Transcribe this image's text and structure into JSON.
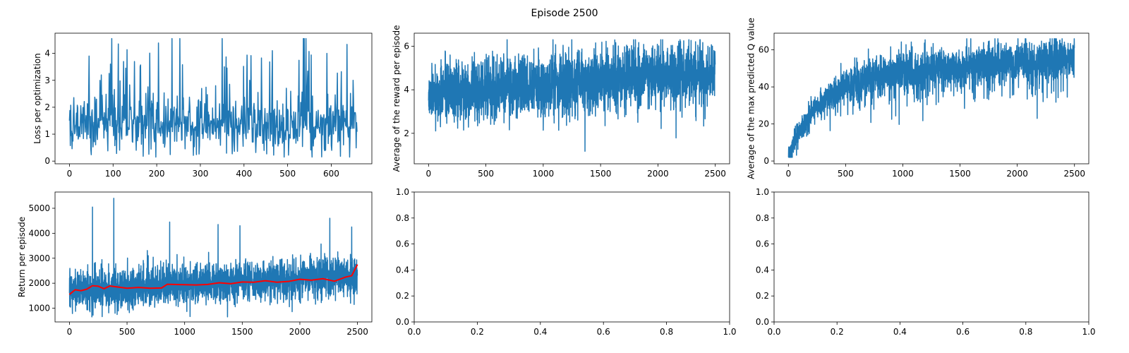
{
  "figure": {
    "suptitle": "Episode 2500"
  },
  "chart_data": [
    {
      "id": "loss",
      "type": "line",
      "ylabel": "Loss per optimization",
      "xlim": [
        -33,
        693
      ],
      "ylim": [
        -0.1,
        4.75
      ],
      "xticks": [
        0,
        100,
        200,
        300,
        400,
        500,
        600
      ],
      "xtick_labels": [
        "0",
        "100",
        "200",
        "300",
        "400",
        "500",
        "600"
      ],
      "yticks": [
        0,
        1,
        2,
        3,
        4
      ],
      "ytick_labels": [
        "0",
        "1",
        "2",
        "3",
        "4"
      ],
      "series": [
        {
          "color": "#1f77b4",
          "n": 660,
          "base_mean": 1.25,
          "noise": 0.55,
          "range": [
            0.15,
            4.55
          ],
          "spikes": [
            {
              "x": 45,
              "y": 3.9
            },
            {
              "x": 112,
              "y": 4.35
            },
            {
              "x": 253,
              "y": 4.55
            },
            {
              "x": 355,
              "y": 3.5
            },
            {
              "x": 465,
              "y": 4.1
            },
            {
              "x": 590,
              "y": 4.0
            },
            {
              "x": 650,
              "y": 3.0
            }
          ]
        }
      ]
    },
    {
      "id": "avg-reward",
      "type": "line",
      "ylabel": "Average of the reward per episode",
      "xlim": [
        -125,
        2625
      ],
      "ylim": [
        0.6,
        6.6
      ],
      "xticks": [
        0,
        500,
        1000,
        1500,
        2000,
        2500
      ],
      "xtick_labels": [
        "0",
        "500",
        "1000",
        "1500",
        "2000",
        "2500"
      ],
      "yticks": [
        2,
        4,
        6
      ],
      "ytick_labels": [
        "2",
        "4",
        "6"
      ],
      "series": [
        {
          "color": "#1f77b4",
          "n": 2500,
          "mean_start": 3.8,
          "mean_end": 4.8,
          "noise": 0.8,
          "range": [
            0.8,
            6.3
          ]
        }
      ]
    },
    {
      "id": "max-q",
      "type": "line",
      "ylabel": "Average of the max predicted Q value",
      "xlim": [
        -125,
        2625
      ],
      "ylim": [
        -1.5,
        69
      ],
      "xticks": [
        0,
        500,
        1000,
        1500,
        2000,
        2500
      ],
      "xtick_labels": [
        "0",
        "500",
        "1000",
        "1500",
        "2000",
        "2500"
      ],
      "yticks": [
        0,
        20,
        40,
        60
      ],
      "ytick_labels": [
        "0",
        "20",
        "40",
        "60"
      ],
      "series": [
        {
          "color": "#1f77b4",
          "n": 2500,
          "curve": "rising",
          "start": 3,
          "plateau_start": 45,
          "plateau_end": 55,
          "noise": 6,
          "range": [
            2,
            66
          ]
        }
      ]
    },
    {
      "id": "return",
      "type": "line",
      "ylabel": "Return per episode",
      "xlim": [
        -125,
        2625
      ],
      "ylim": [
        450,
        5650
      ],
      "xticks": [
        0,
        500,
        1000,
        1500,
        2000,
        2500
      ],
      "xtick_labels": [
        "0",
        "500",
        "1000",
        "1500",
        "2000",
        "2500"
      ],
      "yticks": [
        1000,
        2000,
        3000,
        4000,
        5000
      ],
      "ytick_labels": [
        "1000",
        "2000",
        "3000",
        "4000",
        "5000"
      ],
      "series": [
        {
          "color": "#1f77b4",
          "n": 2500,
          "mean_start": 1700,
          "mean_end": 2300,
          "noise": 450,
          "range": [
            650,
            5400
          ],
          "spikes": [
            {
              "x": 200,
              "y": 5050
            },
            {
              "x": 385,
              "y": 5400
            },
            {
              "x": 870,
              "y": 4450
            },
            {
              "x": 1290,
              "y": 4350
            },
            {
              "x": 1480,
              "y": 4300
            },
            {
              "x": 2260,
              "y": 4600
            },
            {
              "x": 2450,
              "y": 4250
            }
          ]
        },
        {
          "color": "#ff0000",
          "type": "moving-average",
          "points": [
            [
              0,
              1550
            ],
            [
              50,
              1740
            ],
            [
              100,
              1700
            ],
            [
              150,
              1760
            ],
            [
              200,
              1900
            ],
            [
              250,
              1880
            ],
            [
              300,
              1780
            ],
            [
              350,
              1890
            ],
            [
              400,
              1860
            ],
            [
              500,
              1800
            ],
            [
              600,
              1830
            ],
            [
              700,
              1800
            ],
            [
              800,
              1810
            ],
            [
              850,
              1960
            ],
            [
              900,
              1950
            ],
            [
              1000,
              1940
            ],
            [
              1100,
              1930
            ],
            [
              1200,
              1950
            ],
            [
              1300,
              2020
            ],
            [
              1400,
              1980
            ],
            [
              1500,
              2050
            ],
            [
              1600,
              2040
            ],
            [
              1700,
              2100
            ],
            [
              1800,
              2040
            ],
            [
              1900,
              2070
            ],
            [
              2000,
              2160
            ],
            [
              2100,
              2120
            ],
            [
              2200,
              2180
            ],
            [
              2300,
              2080
            ],
            [
              2400,
              2250
            ],
            [
              2450,
              2300
            ],
            [
              2500,
              2750
            ]
          ]
        }
      ]
    },
    {
      "id": "empty-1",
      "type": "line",
      "xlim": [
        0,
        1
      ],
      "ylim": [
        0,
        1
      ],
      "xticks": [
        0,
        0.2,
        0.4,
        0.6,
        0.8,
        1.0
      ],
      "xtick_labels": [
        "0.0",
        "0.2",
        "0.4",
        "0.6",
        "0.8",
        "1.0"
      ],
      "yticks": [
        0,
        0.2,
        0.4,
        0.6,
        0.8,
        1.0
      ],
      "ytick_labels": [
        "0.0",
        "0.2",
        "0.4",
        "0.6",
        "0.8",
        "1.0"
      ],
      "series": []
    },
    {
      "id": "empty-2",
      "type": "line",
      "xlim": [
        0,
        1
      ],
      "ylim": [
        0,
        1
      ],
      "xticks": [
        0,
        0.2,
        0.4,
        0.6,
        0.8,
        1.0
      ],
      "xtick_labels": [
        "0.0",
        "0.2",
        "0.4",
        "0.6",
        "0.8",
        "1.0"
      ],
      "yticks": [
        0,
        0.2,
        0.4,
        0.6,
        0.8,
        1.0
      ],
      "ytick_labels": [
        "0.0",
        "0.2",
        "0.4",
        "0.6",
        "0.8",
        "1.0"
      ],
      "series": []
    }
  ]
}
